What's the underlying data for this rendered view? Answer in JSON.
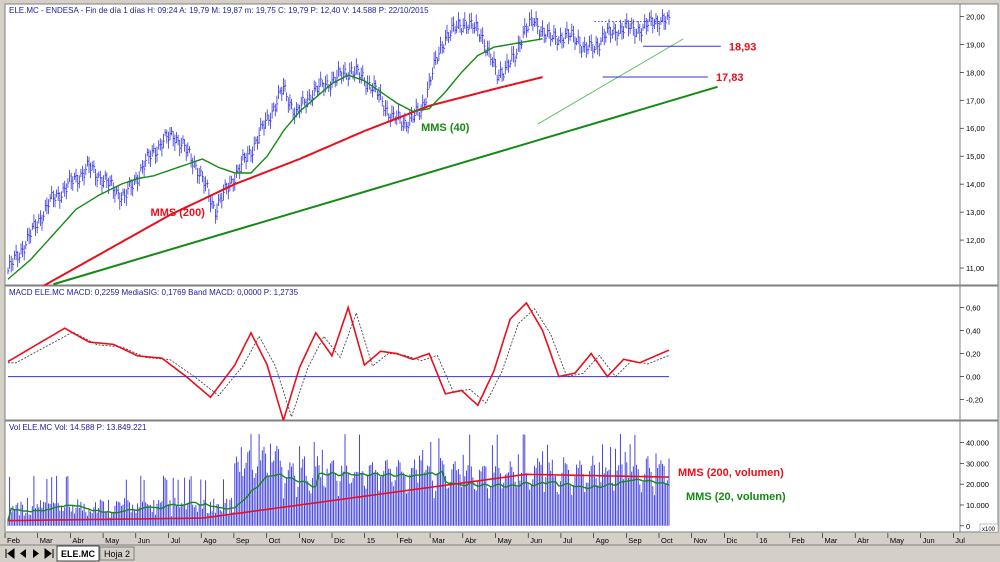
{
  "chart_data": [
    {
      "type": "line",
      "name": "price",
      "header": "ELE.MC - ENDESA - Fin de día 1 días H: 09:24 A: 19,79 M: 19,87 m: 19,75 C: 19,79 P: 12,40 V: 14.588 P: 22/10/2015",
      "ylim": [
        10.5,
        20.3
      ],
      "yticks": [
        "20,00",
        "19,00",
        "18,00",
        "17,00",
        "16,00",
        "15,00",
        "14,00",
        "13,00",
        "12,00",
        "11,00"
      ],
      "ytick_values": [
        20,
        19,
        18,
        17,
        16,
        15,
        14,
        13,
        12,
        11
      ],
      "x_days": [
        0,
        12,
        25,
        38,
        50,
        62,
        72,
        80,
        90,
        102,
        115,
        128,
        140,
        150,
        160,
        170,
        178,
        188,
        200,
        212,
        225,
        237,
        245,
        255,
        262,
        270,
        282,
        292,
        302,
        313,
        318,
        325,
        335,
        345,
        352,
        356,
        362,
        368,
        376,
        384,
        392,
        398,
        403,
        408
      ],
      "price": [
        10.9,
        12.0,
        13.3,
        14.0,
        14.6,
        14.0,
        13.5,
        14.3,
        15.2,
        15.8,
        14.8,
        13.1,
        14.3,
        15.2,
        16.3,
        17.4,
        16.5,
        17.3,
        17.7,
        18.1,
        17.5,
        16.4,
        16.2,
        16.6,
        18.0,
        19.3,
        19.8,
        19.4,
        17.9,
        18.5,
        19.5,
        19.8,
        19.2,
        19.3,
        19.2,
        18.8,
        18.9,
        19.3,
        19.5,
        19.6,
        19.5,
        19.9,
        19.8,
        19.79
      ],
      "mms40": [
        10.6,
        11.3,
        12.2,
        13.1,
        13.6,
        14.0,
        14.2,
        14.3,
        14.5,
        14.7,
        14.9,
        14.6,
        14.4,
        14.4,
        15.0,
        15.9,
        16.6,
        17.1,
        17.6,
        17.9,
        17.7,
        17.3,
        16.9,
        16.6,
        16.7,
        17.3,
        18.0,
        18.6,
        18.9,
        19.0,
        19.1,
        19.2
      ],
      "mms40_days": [
        0,
        14,
        28,
        42,
        56,
        70,
        80,
        90,
        100,
        110,
        120,
        130,
        140,
        150,
        160,
        170,
        180,
        190,
        200,
        210,
        220,
        230,
        240,
        250,
        260,
        270,
        280,
        290,
        300,
        310,
        320,
        330
      ],
      "mms200_days": [
        20,
        60,
        100,
        140,
        180,
        220,
        260,
        300,
        330
      ],
      "mms200": [
        10.3,
        11.6,
        12.9,
        14.0,
        14.9,
        15.9,
        16.8,
        17.4,
        17.83
      ],
      "annotations": [
        {
          "text": "MMS (200)",
          "color": "#e8101c",
          "x": 88,
          "y": 13.0
        },
        {
          "text": "MMS (40)",
          "color": "#148a14",
          "x": 255,
          "y": 16.05
        },
        {
          "text": "18,93",
          "color": "#e8101c",
          "x": 445,
          "y": 18.93
        },
        {
          "text": "17,83",
          "color": "#e8101c",
          "x": 437,
          "y": 17.83
        }
      ],
      "levels": [
        18.93,
        17.83
      ],
      "months": [
        "Feb",
        "Mar",
        "Abr",
        "May",
        "Jun",
        "Jul",
        "Ago",
        "Sep",
        "Oct",
        "Nov",
        "Dic",
        "15",
        "Feb",
        "Mar",
        "Abr",
        "May",
        "Jun",
        "Jul",
        "Ago",
        "Sep",
        "Oct",
        "Nov",
        "Dic",
        "16",
        "Feb",
        "Mar",
        "Abr",
        "May",
        "Jun",
        "Jul"
      ]
    },
    {
      "type": "line",
      "name": "macd",
      "header": "MACD ELE.MC MACD: 0,2259 MediaSIG: 0,1769 Band MACD: 0,0000 P: 1,2735",
      "ylim": [
        -0.36,
        0.7
      ],
      "yticks": [
        "0,60",
        "0,40",
        "0,20",
        "0,00",
        "-0,20"
      ],
      "ytick_values": [
        0.6,
        0.4,
        0.2,
        0.0,
        -0.2
      ],
      "x_days": [
        0,
        18,
        35,
        50,
        65,
        80,
        95,
        110,
        125,
        140,
        150,
        160,
        170,
        180,
        190,
        200,
        210,
        220,
        230,
        240,
        250,
        260,
        270,
        280,
        290,
        300,
        310,
        320,
        330,
        340,
        350,
        360,
        370,
        380,
        390,
        408
      ],
      "macd": [
        0.13,
        0.28,
        0.42,
        0.3,
        0.28,
        0.18,
        0.16,
        0.0,
        -0.18,
        0.1,
        0.38,
        0.1,
        -0.38,
        0.08,
        0.38,
        0.18,
        0.6,
        0.1,
        0.22,
        0.2,
        0.15,
        0.2,
        -0.15,
        -0.12,
        -0.25,
        0.05,
        0.5,
        0.64,
        0.4,
        0.0,
        0.03,
        0.2,
        0.0,
        0.15,
        0.12,
        0.23
      ]
    },
    {
      "type": "bar",
      "name": "volume",
      "header": "Vol ELE.MC Vol: 14.588 P: 13.849.221",
      "ylim": [
        -2000,
        45000
      ],
      "yticks": [
        "40.000",
        "30.000",
        "20.000",
        "10.000",
        "0"
      ],
      "ytick_values": [
        40000,
        30000,
        20000,
        10000,
        0
      ],
      "annotations": [
        {
          "text": "MMS (200, volumen)",
          "color": "#e8101c"
        },
        {
          "text": "MMS (20, volumen)",
          "color": "#148a14"
        }
      ]
    }
  ],
  "tabs": {
    "active": "ELE.MC",
    "other": "Hoja 2",
    "corner": "x100"
  }
}
